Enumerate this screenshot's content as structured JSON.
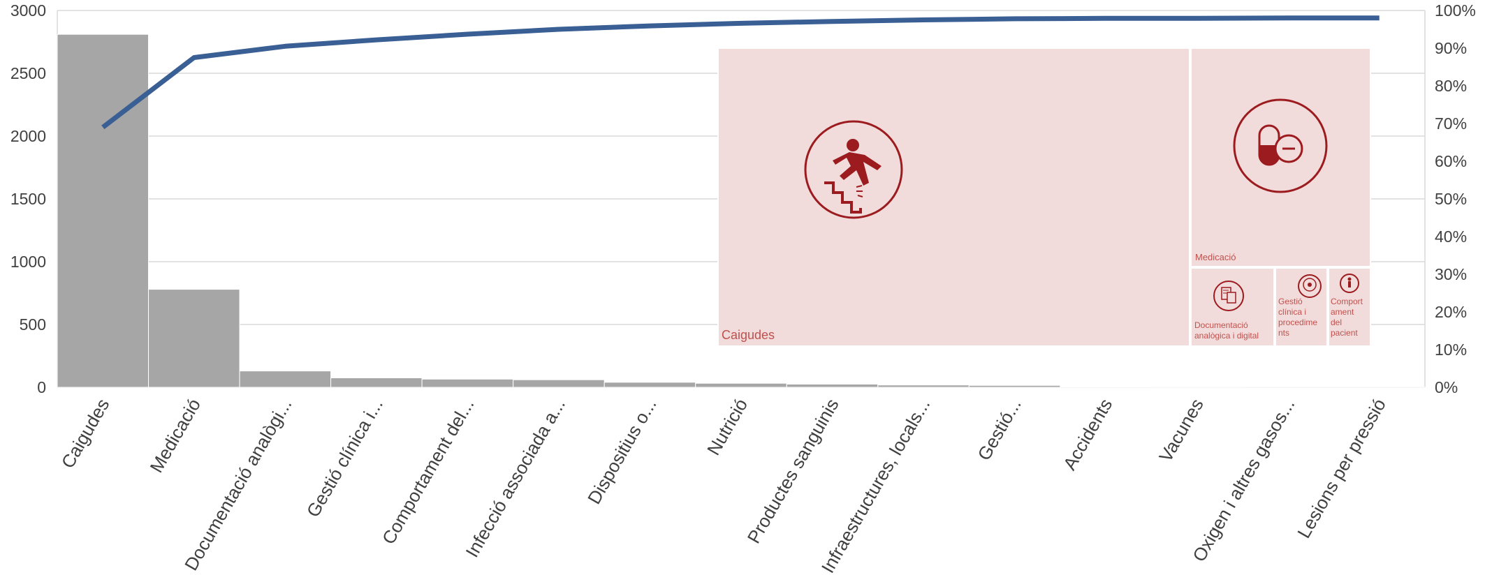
{
  "chart_data": {
    "type": "bar",
    "categories": [
      "Caigudes",
      "Medicació",
      "Documentació analògi...",
      "Gestió clínica i...",
      "Comportament del...",
      "Infecció associada a...",
      "Dispositius o...",
      "Nutrició",
      "Productes sanguinis",
      "Infraestructures, locals...",
      "Gestió...",
      "Accidents",
      "Vacunes",
      "Oxigen i altres gasos...",
      "Lesions per pressió"
    ],
    "series": [
      {
        "type": "bar",
        "values": [
          2810,
          780,
          130,
          75,
          65,
          60,
          40,
          32,
          25,
          18,
          15,
          3,
          2,
          1,
          1
        ]
      },
      {
        "type": "line",
        "axis": "right",
        "values": [
          0.69,
          0.875,
          0.905,
          0.922,
          0.937,
          0.95,
          0.959,
          0.966,
          0.971,
          0.975,
          0.978,
          0.979,
          0.979,
          0.98,
          0.98
        ]
      }
    ],
    "y_left": {
      "ylim": [
        0,
        3000
      ],
      "ticks": [
        "0",
        "500",
        "1000",
        "1500",
        "2000",
        "2500",
        "3000"
      ]
    },
    "y_right": {
      "ylim": [
        0,
        1
      ],
      "ticks": [
        "0%",
        "10%",
        "20%",
        "30%",
        "40%",
        "50%",
        "60%",
        "70%",
        "80%",
        "90%",
        "100%"
      ]
    },
    "grid": true,
    "colors": {
      "bar": "#a6a6a6",
      "line": "#3a5f94",
      "treemap_fill": "#f2dcdb",
      "treemap_icon": "#9b1b1f",
      "treemap_text": "#c0504d"
    }
  },
  "treemap": {
    "tiles": [
      {
        "label": "Caigudes",
        "icon": "fall-stairs-icon"
      },
      {
        "label": "Medicació",
        "icon": "pill-minus-icon"
      },
      {
        "label": "Documentació analògica i digital",
        "icon": "document-icon"
      },
      {
        "label": "Gestió clínica i procediments",
        "icon": "clinical-management-icon"
      },
      {
        "label": "Comportament del pacient",
        "icon": "patient-behavior-icon"
      }
    ]
  }
}
